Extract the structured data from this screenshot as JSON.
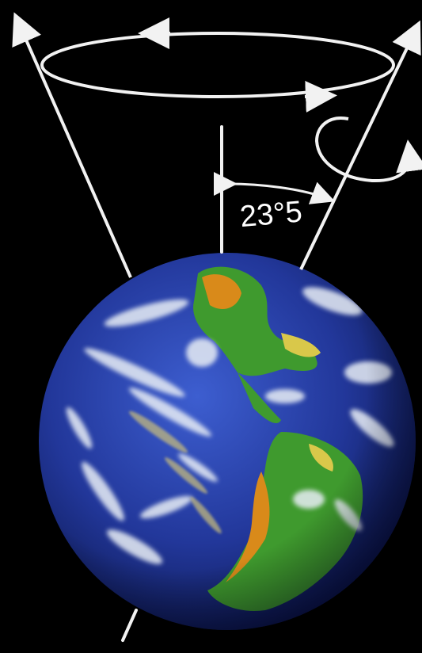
{
  "diagram": {
    "angle_label": "23°5",
    "colors": {
      "background": "#000000",
      "lines": "#f2f2f2",
      "ocean": "#2a3fa8",
      "land_green": "#3f9a2e",
      "land_orange": "#d98a1a",
      "clouds": "#e8eef5"
    },
    "icons": [
      "precession-circle-arrow",
      "spin-arrow",
      "angle-arrow"
    ]
  }
}
